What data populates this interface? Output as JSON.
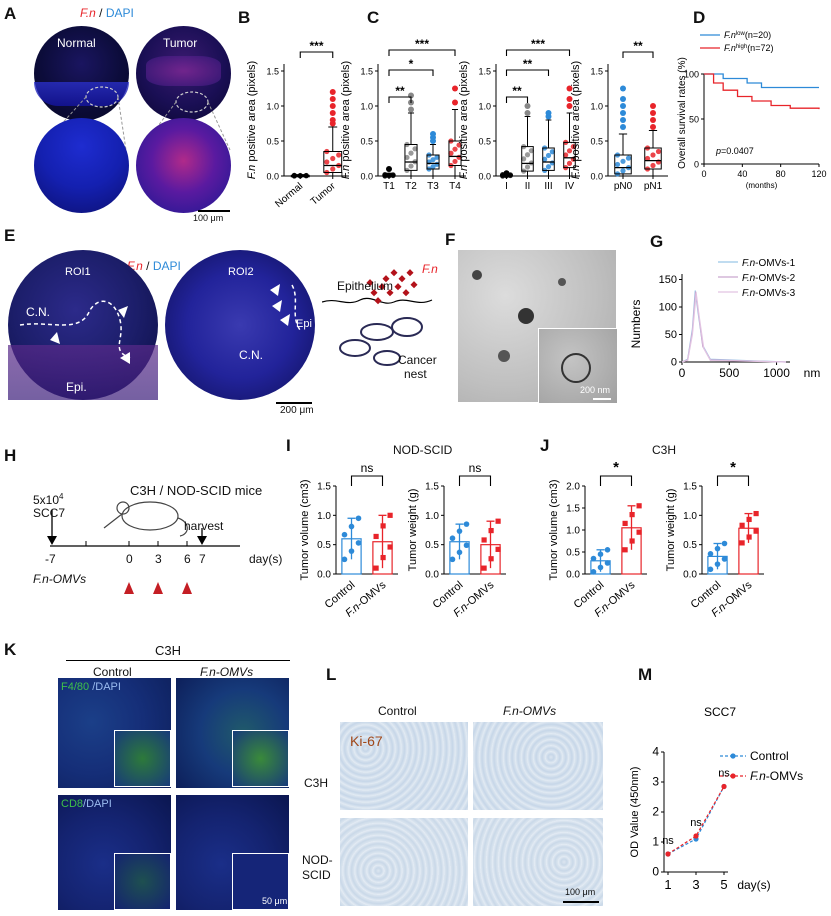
{
  "panels": {
    "A": {
      "label": "A",
      "title_fn": "F.n",
      "title_sep": " / ",
      "title_dapi": "DAPI",
      "normal": "Normal",
      "tumor": "Tumor",
      "scale": "100 μm"
    },
    "B": {
      "label": "B"
    },
    "C": {
      "label": "C"
    },
    "D": {
      "label": "D"
    },
    "E": {
      "label": "E",
      "title_fn": "F.n",
      "title_sep": " / ",
      "title_dapi": "DAPI",
      "roi1": "ROI1",
      "roi2": "ROI2",
      "cn": "C.N.",
      "epi": "Epi.",
      "epi2": "Epi",
      "scale": "200 μm",
      "schematic_epithelium": "Epithelium",
      "schematic_fn": "F.n",
      "schematic_cancer": "Cancer",
      "schematic_nest": "nest"
    },
    "F": {
      "label": "F",
      "scale": "200 nm"
    },
    "G": {
      "label": "G"
    },
    "H": {
      "label": "H",
      "cells_count": "5x10",
      "cells_exp": "4",
      "cells_name": "SCC7",
      "mice": "C3H / NOD-SCID mice",
      "harvest": "harvest",
      "days": [
        "-7",
        "0",
        "3",
        "6",
        "7"
      ],
      "day_unit": "day(s)",
      "omvs": "F.n-OMVs"
    },
    "I": {
      "label": "I",
      "title": "NOD-SCID"
    },
    "J": {
      "label": "J",
      "title": "C3H"
    },
    "K": {
      "label": "K",
      "title": "C3H",
      "control": "Control",
      "omvs": "F.n-OMVs",
      "f480": "F4/80",
      "dapi1": " /DAPI",
      "cd8": "CD8",
      "dapi2": "/DAPI",
      "scale": "50 μm"
    },
    "L": {
      "label": "L",
      "control": "Control",
      "omvs": "F.n-OMVs",
      "ki67": "Ki-67",
      "c3h": "C3H",
      "nod1": "NOD-",
      "nod2": "SCID",
      "scale": "100 μm"
    },
    "M": {
      "label": "M"
    }
  },
  "chart_data": [
    {
      "id": "B",
      "type": "box",
      "ylabel": "F.n positive area (pixels)",
      "categories": [
        "Normal",
        "Tumor"
      ],
      "yticks": [
        "0.0",
        "0.5",
        "1.0",
        "1.5"
      ],
      "ylim": [
        0,
        1.6
      ],
      "sig": "***",
      "boxes": [
        {
          "name": "Normal",
          "min": 0,
          "q1": 0,
          "median": 0,
          "q3": 0.01,
          "max": 0.02
        },
        {
          "name": "Tumor",
          "min": 0,
          "q1": 0.05,
          "median": 0.15,
          "q3": 0.35,
          "max": 0.7
        }
      ],
      "outliers": {
        "Tumor": [
          0.75,
          0.8,
          0.9,
          1.0,
          1.1,
          1.2
        ]
      },
      "colors": [
        "#000000",
        "#e8242a"
      ]
    },
    {
      "id": "C1",
      "type": "box",
      "ylabel": "F.n positive area (pixels)",
      "categories": [
        "T1",
        "T2",
        "T3",
        "T4"
      ],
      "yticks": [
        "0.0",
        "0.5",
        "1.0",
        "1.5"
      ],
      "ylim": [
        0,
        1.6
      ],
      "sig": [
        "**",
        "*",
        "***"
      ],
      "boxes": [
        {
          "name": "T1",
          "min": 0,
          "q1": 0,
          "median": 0.01,
          "q3": 0.02,
          "max": 0.04
        },
        {
          "name": "T2",
          "min": 0,
          "q1": 0.08,
          "median": 0.2,
          "q3": 0.45,
          "max": 0.9
        },
        {
          "name": "T3",
          "min": 0,
          "q1": 0.1,
          "median": 0.18,
          "q3": 0.3,
          "max": 0.45
        },
        {
          "name": "T4",
          "min": 0,
          "q1": 0.15,
          "median": 0.28,
          "q3": 0.5,
          "max": 0.95
        }
      ],
      "outliers": {
        "T1": [
          0.1
        ],
        "T2": [
          0.95,
          1.05,
          1.15
        ],
        "T3": [
          0.5,
          0.55,
          0.6
        ],
        "T4": [
          1.05,
          1.25
        ]
      },
      "colors": [
        "#000000",
        "#888888",
        "#2d8ad8",
        "#e8242a"
      ]
    },
    {
      "id": "C2",
      "type": "box",
      "ylabel": "F.n positive area (pixels)",
      "categories": [
        "I",
        "II",
        "III",
        "IV"
      ],
      "yticks": [
        "0.0",
        "0.5",
        "1.0",
        "1.5"
      ],
      "ylim": [
        0,
        1.6
      ],
      "sig": [
        "**",
        "**",
        "***"
      ],
      "boxes": [
        {
          "name": "I",
          "min": 0,
          "q1": 0,
          "median": 0.01,
          "q3": 0.02,
          "max": 0.04
        },
        {
          "name": "II",
          "min": 0,
          "q1": 0.07,
          "median": 0.18,
          "q3": 0.42,
          "max": 0.85
        },
        {
          "name": "III",
          "min": 0,
          "q1": 0.08,
          "median": 0.2,
          "q3": 0.4,
          "max": 0.8
        },
        {
          "name": "IV",
          "min": 0,
          "q1": 0.12,
          "median": 0.26,
          "q3": 0.48,
          "max": 0.9
        }
      ],
      "outliers": {
        "I": [
          0.04
        ],
        "II": [
          0.9,
          1.0
        ],
        "III": [
          0.85,
          0.9
        ],
        "IV": [
          1.0,
          1.1,
          1.25
        ]
      },
      "colors": [
        "#000000",
        "#888888",
        "#2d8ad8",
        "#e8242a"
      ]
    },
    {
      "id": "C3",
      "type": "box",
      "ylabel": "F.n positive area (pixels)",
      "categories": [
        "pN0",
        "pN1"
      ],
      "yticks": [
        "0.0",
        "0.5",
        "1.0",
        "1.5"
      ],
      "ylim": [
        0,
        1.6
      ],
      "sig": "**",
      "boxes": [
        {
          "name": "pN0",
          "min": 0,
          "q1": 0.03,
          "median": 0.12,
          "q3": 0.3,
          "max": 0.6
        },
        {
          "name": "pN1",
          "min": 0,
          "q1": 0.1,
          "median": 0.22,
          "q3": 0.4,
          "max": 0.65
        }
      ],
      "outliers": {
        "pN0": [
          0.7,
          0.8,
          0.9,
          1.0,
          1.1,
          1.25
        ],
        "pN1": [
          0.7,
          0.8,
          0.9,
          1.0
        ]
      },
      "colors": [
        "#2d8ad8",
        "#e8242a"
      ]
    },
    {
      "id": "D",
      "type": "line",
      "ylabel": "Overall survival rates (%)",
      "xlabel": "(months)",
      "xticks": [
        "0",
        "40",
        "80",
        "120"
      ],
      "yticks": [
        "0",
        "50",
        "100"
      ],
      "xlim": [
        0,
        120
      ],
      "ylim": [
        0,
        100
      ],
      "pvalue": "p=0.0407",
      "series": [
        {
          "name": "F.n",
          "sup": "low",
          "n": "(n=20)",
          "color": "#2d8ad8",
          "x": [
            0,
            20,
            45,
            60,
            80,
            120
          ],
          "y": [
            100,
            95,
            90,
            85,
            85,
            85
          ]
        },
        {
          "name": "F.n",
          "sup": "high",
          "n": "(n=72)",
          "color": "#e8242a",
          "x": [
            0,
            10,
            20,
            35,
            50,
            70,
            90,
            120
          ],
          "y": [
            100,
            90,
            82,
            75,
            70,
            65,
            62,
            61
          ]
        }
      ]
    },
    {
      "id": "G",
      "type": "line",
      "ylabel": "Numbers",
      "xlabel": "nm",
      "xticks": [
        "0",
        "500",
        "1000"
      ],
      "yticks": [
        "0",
        "50",
        "100",
        "150"
      ],
      "xlim": [
        0,
        1100
      ],
      "ylim": [
        0,
        160
      ],
      "series": [
        {
          "name": "F.n-OMVs-1",
          "color": "#9bc6e8",
          "x": [
            0,
            60,
            110,
            140,
            170,
            220,
            300,
            1100
          ],
          "y": [
            0,
            5,
            60,
            130,
            90,
            30,
            5,
            0
          ]
        },
        {
          "name": "F.n-OMVs-2",
          "color": "#c9a6cf",
          "x": [
            0,
            60,
            110,
            145,
            175,
            220,
            300,
            1100
          ],
          "y": [
            0,
            4,
            55,
            128,
            88,
            28,
            4,
            0
          ]
        },
        {
          "name": "F.n-OMVs-3",
          "color": "#e2c4e2",
          "x": [
            0,
            60,
            110,
            150,
            180,
            230,
            300,
            1100
          ],
          "y": [
            0,
            3,
            50,
            125,
            85,
            25,
            3,
            0
          ]
        }
      ]
    },
    {
      "id": "I1",
      "type": "bar",
      "ylabel": "Tumor volume  (cm3)",
      "categories": [
        "Control",
        "F.n-OMVs"
      ],
      "yticks": [
        "0.0",
        "0.5",
        "1.0",
        "1.5"
      ],
      "ylim": [
        0,
        1.5
      ],
      "sig": "ns",
      "values": [
        0.6,
        0.55
      ],
      "errors": [
        0.35,
        0.45
      ],
      "colors": [
        "#2d8ad8",
        "#e8242a"
      ]
    },
    {
      "id": "I2",
      "type": "bar",
      "ylabel": "Tumor weight  (g)",
      "categories": [
        "Control",
        "F.n-OMVs"
      ],
      "yticks": [
        "0.0",
        "0.5",
        "1.0",
        "1.5"
      ],
      "ylim": [
        0,
        1.5
      ],
      "sig": "ns",
      "values": [
        0.55,
        0.5
      ],
      "errors": [
        0.3,
        0.4
      ],
      "colors": [
        "#2d8ad8",
        "#e8242a"
      ]
    },
    {
      "id": "J1",
      "type": "bar",
      "ylabel": "Tumor volume (cm3)",
      "categories": [
        "Control",
        "F.n-OMVs"
      ],
      "yticks": [
        "0.0",
        "0.5",
        "1.0",
        "1.5",
        "2.0"
      ],
      "ylim": [
        0,
        2.0
      ],
      "sig": "*",
      "values": [
        0.3,
        1.05
      ],
      "errors": [
        0.25,
        0.5
      ],
      "colors": [
        "#2d8ad8",
        "#e8242a"
      ]
    },
    {
      "id": "J2",
      "type": "bar",
      "ylabel": "Tumor weight (g)",
      "categories": [
        "Control",
        "F.n-OMVs"
      ],
      "yticks": [
        "0.0",
        "0.5",
        "1.0",
        "1.5"
      ],
      "ylim": [
        0,
        1.5
      ],
      "sig": "*",
      "values": [
        0.3,
        0.78
      ],
      "errors": [
        0.22,
        0.25
      ],
      "colors": [
        "#2d8ad8",
        "#e8242a"
      ]
    },
    {
      "id": "M",
      "type": "line",
      "title": "SCC7",
      "ylabel": "OD Value  (450nm)",
      "xlabel": "day(s)",
      "xticks": [
        "1",
        "3",
        "5"
      ],
      "yticks": [
        "0",
        "1",
        "2",
        "3",
        "4"
      ],
      "ylim": [
        0,
        4
      ],
      "annotations": [
        "ns",
        "ns",
        "ns"
      ],
      "series": [
        {
          "name": "Control",
          "color": "#2d8ad8",
          "x": [
            1,
            3,
            5
          ],
          "y": [
            0.6,
            1.1,
            2.85
          ]
        },
        {
          "name": "F.n-OMVs",
          "color": "#e8242a",
          "x": [
            1,
            3,
            5
          ],
          "y": [
            0.6,
            1.2,
            2.85
          ]
        }
      ]
    }
  ]
}
